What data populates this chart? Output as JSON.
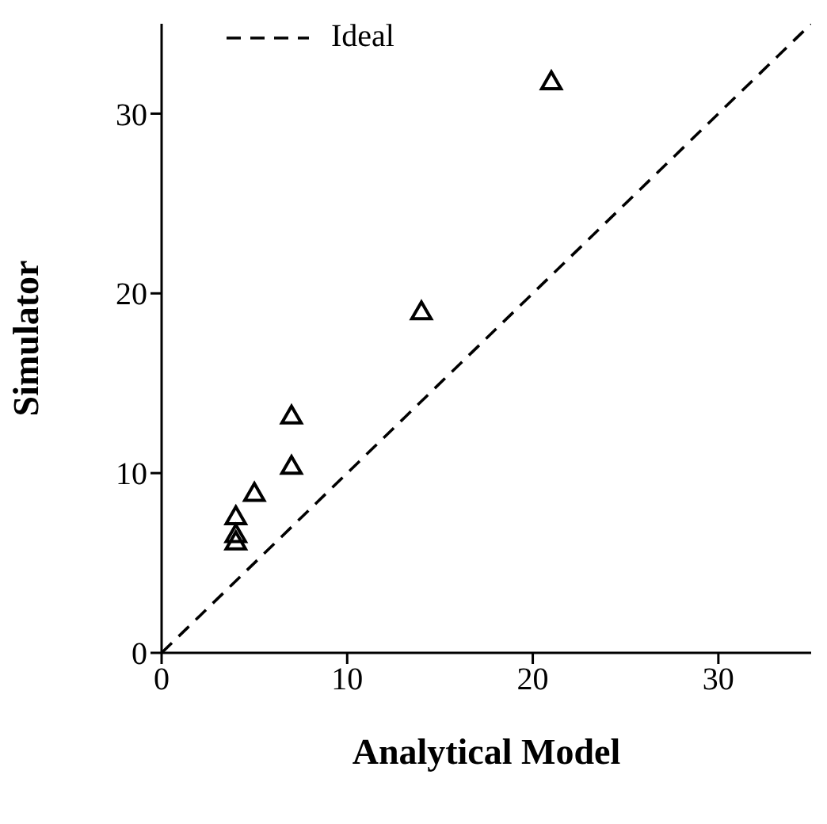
{
  "chart_data": {
    "type": "scatter",
    "xlabel": "Analytical Model",
    "ylabel": "Simulator",
    "xlim": [
      0,
      35
    ],
    "ylim": [
      0,
      35
    ],
    "xticks": [
      0,
      10,
      20,
      30
    ],
    "yticks": [
      0,
      10,
      20,
      30
    ],
    "grid": false,
    "legend": "top left",
    "marker": "triangle",
    "series": [
      {
        "color": "#000000",
        "x": [
          21,
          14,
          7,
          7,
          5,
          4,
          4,
          4
        ],
        "values": [
          31.7,
          18.9,
          13.1,
          10.3,
          8.8,
          7.5,
          6.5,
          6.1
        ]
      },
      {
        "type": "line",
        "name": "Ideal",
        "color": "#000000",
        "line_style": "dashed",
        "marker": "none",
        "x": [
          0,
          35
        ],
        "values": [
          0,
          35
        ]
      }
    ]
  }
}
